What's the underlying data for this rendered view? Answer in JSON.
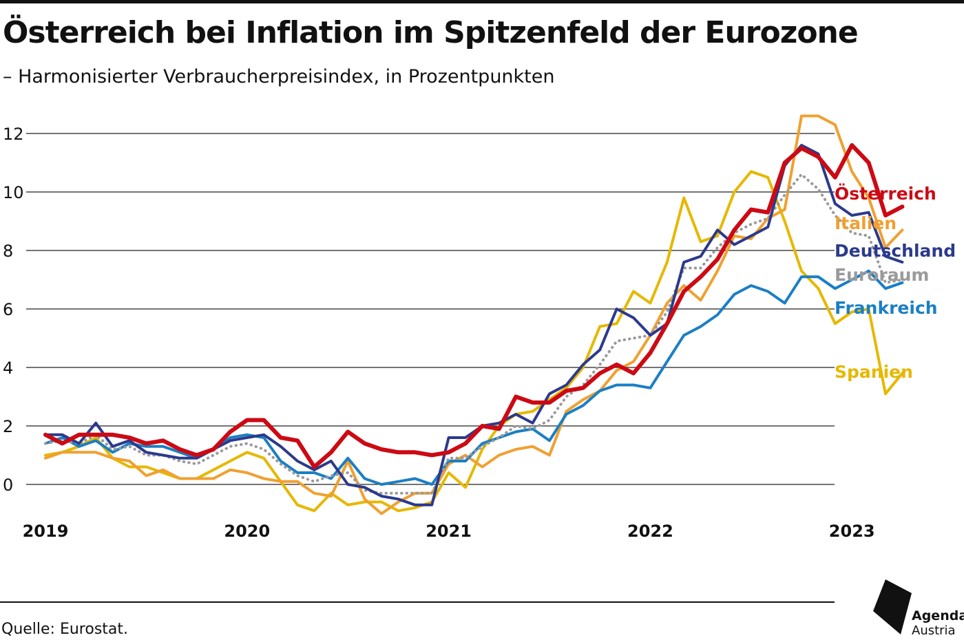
{
  "header": {
    "title": "Österreich bei Inflation im Spitzenfeld der Eurozone",
    "subtitle": "– Harmonisierter Verbraucherpreisindex, in Prozentpunkten"
  },
  "footer": {
    "source": "Quelle: Eurostat.",
    "logo_line1": "Agenda",
    "logo_line2": "Austria"
  },
  "chart_data": {
    "type": "line",
    "title": "",
    "xlabel": "",
    "ylabel": "",
    "x_start": "2019-01",
    "x_end": "2023-04",
    "x_tick_labels": [
      "2019",
      "2020",
      "2021",
      "2022",
      "2023"
    ],
    "y_ticks": [
      0,
      2,
      4,
      6,
      8,
      10,
      12
    ],
    "ylim": [
      -1,
      13
    ],
    "grid": "horizontal",
    "legend": "direct labels at right",
    "series": [
      {
        "name": "Spanien",
        "color": "#e6b800",
        "style": "solid",
        "values": [
          1.0,
          1.1,
          1.3,
          1.6,
          0.9,
          0.6,
          0.6,
          0.4,
          0.2,
          0.2,
          0.5,
          0.8,
          1.1,
          0.9,
          0.1,
          -0.7,
          -0.9,
          -0.3,
          -0.7,
          -0.6,
          -0.6,
          -0.9,
          -0.8,
          -0.6,
          0.4,
          -0.1,
          1.2,
          2.0,
          2.4,
          2.5,
          2.9,
          3.3,
          4.0,
          5.4,
          5.5,
          6.6,
          6.2,
          7.6,
          9.8,
          8.3,
          8.5,
          10.0,
          10.7,
          10.5,
          9.0,
          7.3,
          6.7,
          5.5,
          5.9,
          6.0,
          3.1,
          3.8
        ]
      },
      {
        "name": "Italien",
        "color": "#f0a030",
        "style": "solid",
        "values": [
          0.9,
          1.1,
          1.1,
          1.1,
          0.9,
          0.8,
          0.3,
          0.5,
          0.2,
          0.2,
          0.2,
          0.5,
          0.4,
          0.2,
          0.1,
          0.1,
          -0.3,
          -0.4,
          0.8,
          -0.5,
          -1.0,
          -0.6,
          -0.3,
          -0.3,
          0.7,
          1.0,
          0.6,
          1.0,
          1.2,
          1.3,
          1.0,
          2.5,
          2.9,
          3.2,
          3.9,
          4.2,
          5.1,
          6.2,
          6.8,
          6.3,
          7.3,
          8.5,
          8.4,
          9.1,
          9.4,
          12.6,
          12.6,
          12.3,
          10.7,
          9.8,
          8.1,
          8.7
        ]
      },
      {
        "name": "Frankreich",
        "color": "#1b7fc4",
        "style": "solid",
        "values": [
          1.4,
          1.6,
          1.3,
          1.5,
          1.1,
          1.4,
          1.3,
          1.3,
          1.1,
          0.9,
          1.2,
          1.6,
          1.7,
          1.6,
          0.8,
          0.4,
          0.4,
          0.2,
          0.9,
          0.2,
          0.0,
          0.1,
          0.2,
          0.0,
          0.8,
          0.8,
          1.4,
          1.6,
          1.8,
          1.9,
          1.5,
          2.4,
          2.7,
          3.2,
          3.4,
          3.4,
          3.3,
          4.2,
          5.1,
          5.4,
          5.8,
          6.5,
          6.8,
          6.6,
          6.2,
          7.1,
          7.1,
          6.7,
          7.0,
          7.3,
          6.7,
          6.9
        ]
      },
      {
        "name": "Euroraum",
        "color": "#9a9a9a",
        "style": "dotted",
        "values": [
          1.4,
          1.5,
          1.4,
          1.7,
          1.2,
          1.3,
          1.0,
          1.0,
          0.8,
          0.7,
          1.0,
          1.3,
          1.4,
          1.2,
          0.7,
          0.3,
          0.1,
          0.3,
          0.4,
          -0.2,
          -0.3,
          -0.3,
          -0.3,
          -0.3,
          0.9,
          0.9,
          1.3,
          1.6,
          2.0,
          1.9,
          2.2,
          3.0,
          3.4,
          4.1,
          4.9,
          5.0,
          5.1,
          5.9,
          7.4,
          7.4,
          8.1,
          8.6,
          8.9,
          9.1,
          9.9,
          10.6,
          10.1,
          9.2,
          8.6,
          8.5,
          6.9,
          7.0
        ]
      },
      {
        "name": "Deutschland",
        "color": "#2b3a8c",
        "style": "solid",
        "values": [
          1.7,
          1.7,
          1.4,
          2.1,
          1.3,
          1.5,
          1.1,
          1.0,
          0.9,
          0.9,
          1.2,
          1.5,
          1.6,
          1.7,
          1.3,
          0.8,
          0.5,
          0.8,
          0.0,
          -0.1,
          -0.4,
          -0.5,
          -0.7,
          -0.7,
          1.6,
          1.6,
          2.0,
          2.1,
          2.4,
          2.1,
          3.1,
          3.4,
          4.1,
          4.6,
          6.0,
          5.7,
          5.1,
          5.5,
          7.6,
          7.8,
          8.7,
          8.2,
          8.5,
          8.8,
          10.9,
          11.6,
          11.3,
          9.6,
          9.2,
          9.3,
          7.8,
          7.6
        ]
      },
      {
        "name": "Österreich",
        "color": "#cc0a14",
        "style": "solid",
        "values": [
          1.7,
          1.4,
          1.7,
          1.7,
          1.7,
          1.6,
          1.4,
          1.5,
          1.2,
          1.0,
          1.2,
          1.8,
          2.2,
          2.2,
          1.6,
          1.5,
          0.6,
          1.1,
          1.8,
          1.4,
          1.2,
          1.1,
          1.1,
          1.0,
          1.1,
          1.4,
          2.0,
          1.9,
          3.0,
          2.8,
          2.8,
          3.2,
          3.3,
          3.8,
          4.1,
          3.8,
          4.5,
          5.5,
          6.6,
          7.1,
          7.7,
          8.7,
          9.4,
          9.3,
          11.0,
          11.5,
          11.2,
          10.5,
          11.6,
          11.0,
          9.2,
          9.5
        ]
      }
    ]
  }
}
